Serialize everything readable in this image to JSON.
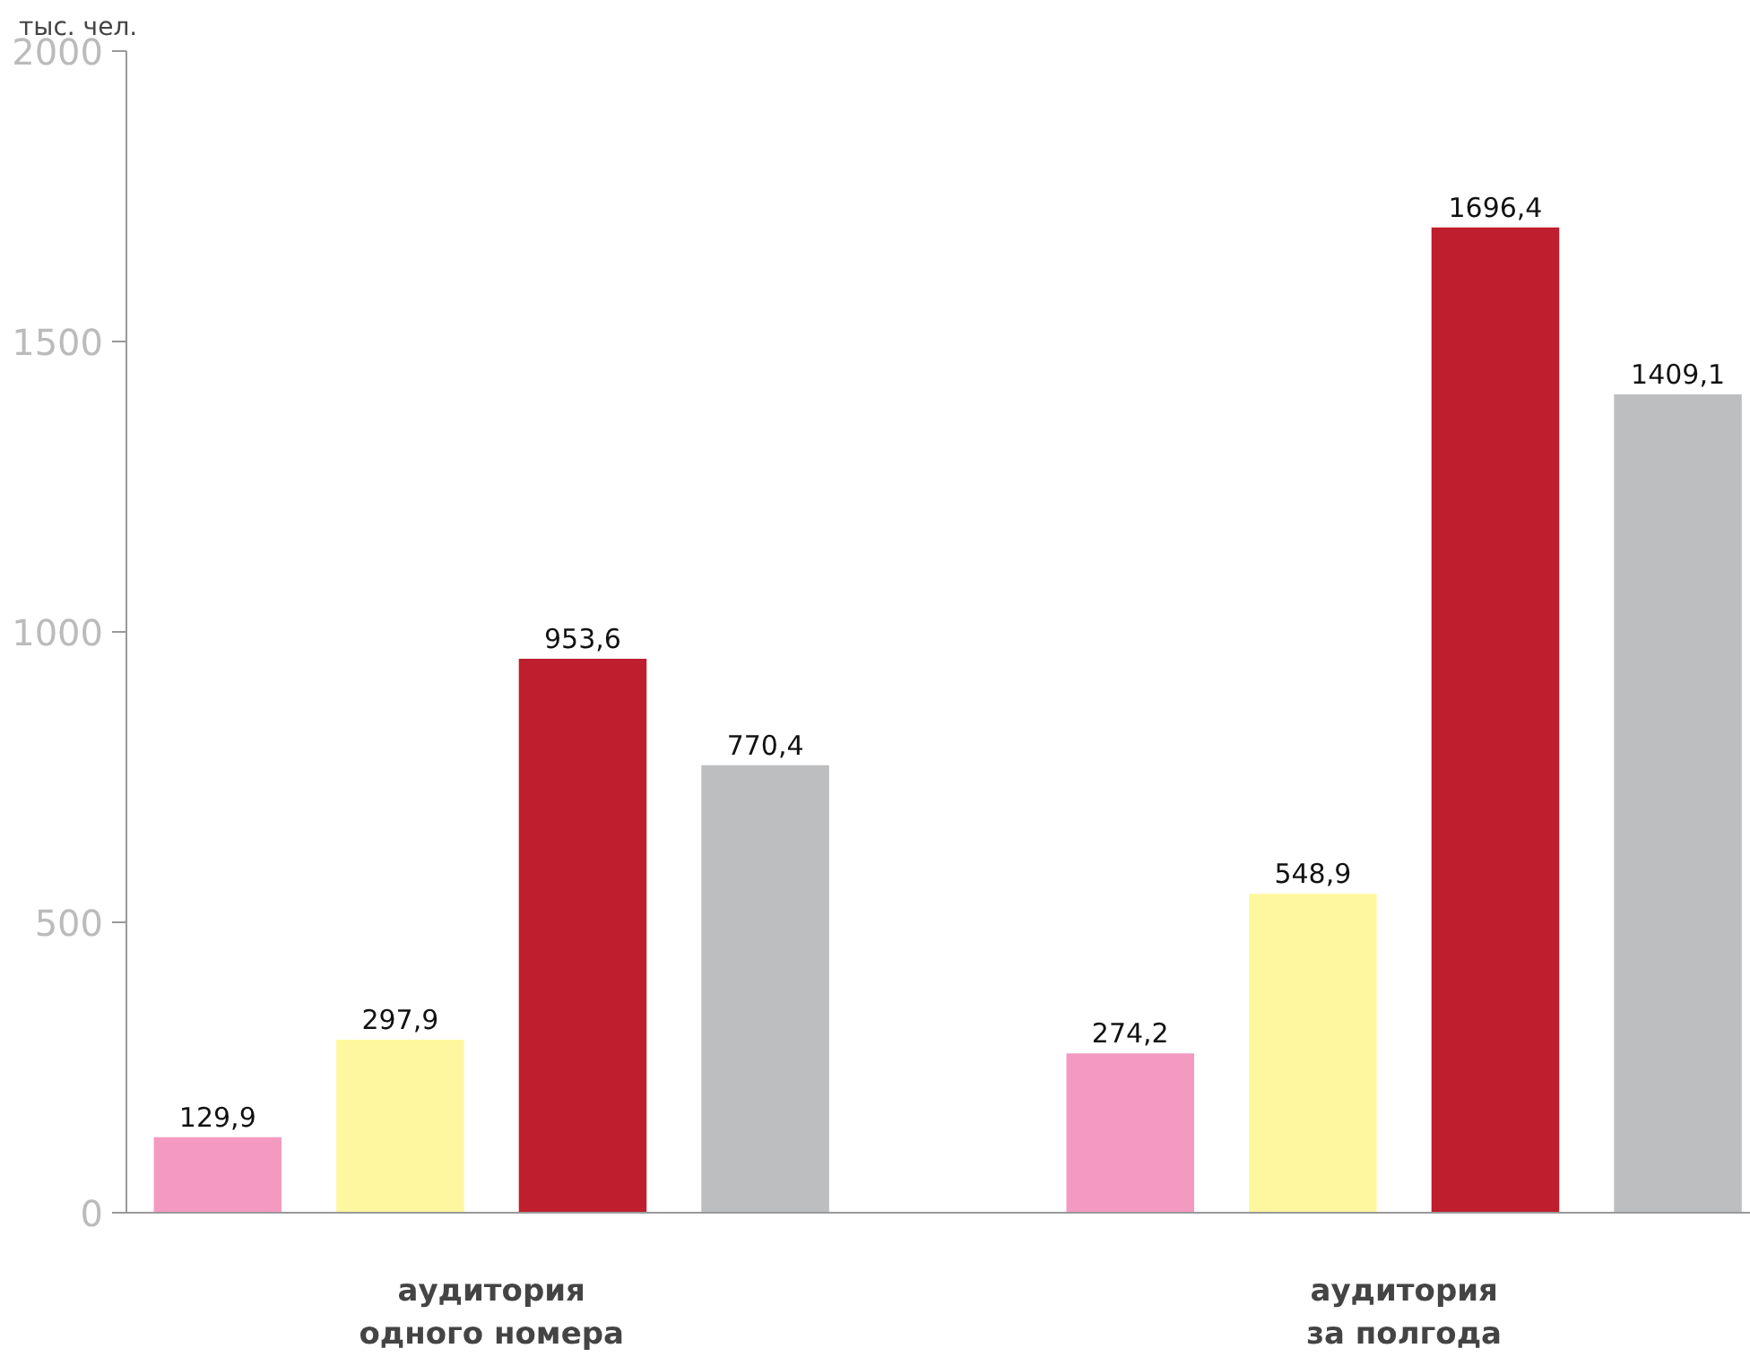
{
  "chart_data": {
    "type": "bar",
    "ylabel": "тыс. чел.",
    "categories": [
      "аудитория\nодного номера",
      "аудитория\nза полгода"
    ],
    "series": [
      {
        "color": "#f49ac1",
        "values": [
          129.9,
          274.2
        ],
        "value_labels": [
          "129,9",
          "274,2"
        ]
      },
      {
        "color": "#fff79f",
        "values": [
          297.9,
          548.9
        ],
        "value_labels": [
          "297,9",
          "548,9"
        ]
      },
      {
        "color": "#be1e2d",
        "values": [
          953.6,
          1696.4
        ],
        "value_labels": [
          "953,6",
          "1696,4"
        ]
      },
      {
        "color": "#bcbec0",
        "values": [
          770.4,
          1409.1
        ],
        "value_labels": [
          "770,4",
          "1409,1"
        ]
      }
    ],
    "ylim": [
      0,
      2000
    ],
    "yticks": [
      0,
      500,
      1000,
      1500,
      2000
    ],
    "grid": false
  }
}
